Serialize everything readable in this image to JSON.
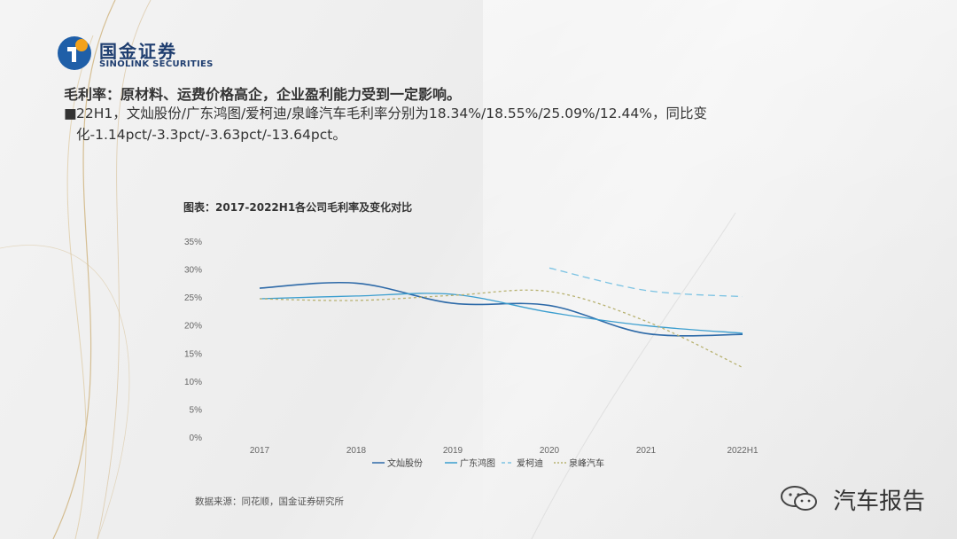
{
  "logo": {
    "name_cn": "国金证券",
    "name_en": "SINOLINK SECURITIES"
  },
  "headline": "毛利率：原材料、运费价格高企，企业盈利能力受到一定影响。",
  "bullet": {
    "symbol": "■",
    "text": "22H1，文灿股份/广东鸿图/爱柯迪/泉峰汽车毛利率分别为18.34%/18.55%/25.09%/12.44%，同比变化-1.14pct/-3.3pct/-3.63pct/-13.64pct。"
  },
  "chart_data": {
    "type": "line",
    "title": "图表：2017-2022H1各公司毛利率及变化对比",
    "categories": [
      "2017",
      "2018",
      "2019",
      "2020",
      "2021",
      "2022H1"
    ],
    "yticks": [
      "0%",
      "5%",
      "10%",
      "15%",
      "20%",
      "25%",
      "30%",
      "35%"
    ],
    "ylim": [
      0,
      35
    ],
    "grid": false,
    "legend": "bottom",
    "series": [
      {
        "name": "文灿股份",
        "values": [
          26.6,
          27.5,
          23.9,
          23.5,
          18.5,
          18.34
        ],
        "color": "#2e6aa8",
        "dash": ""
      },
      {
        "name": "广东鸿图",
        "values": [
          24.7,
          25.2,
          25.5,
          22.3,
          19.9,
          18.55
        ],
        "color": "#3b9ecf",
        "dash": ""
      },
      {
        "name": "爱柯迪",
        "values": [
          null,
          null,
          null,
          30.2,
          26.2,
          25.09
        ],
        "color": "#7cc3e3",
        "dash": "8,5"
      },
      {
        "name": "泉峰汽车",
        "values": [
          24.7,
          24.4,
          25.3,
          26.0,
          20.7,
          12.44
        ],
        "color": "#b8b271",
        "dash": "3,3"
      }
    ]
  },
  "source": "数据来源：同花顺，国金证券研究所",
  "watermark": {
    "text": "汽车报告"
  }
}
